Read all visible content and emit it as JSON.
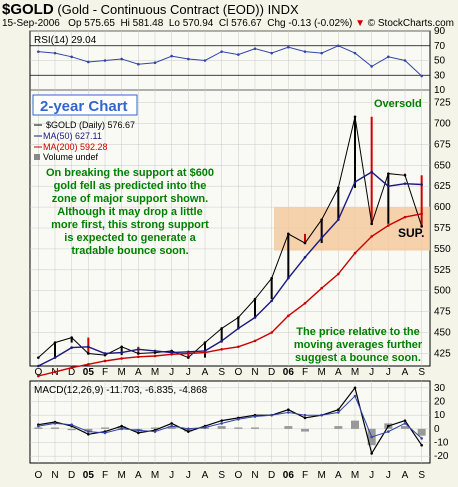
{
  "header": {
    "symbol": "$GOLD",
    "name": "(Gold - Continuous Contract (EOD))",
    "exchange": "INDX",
    "date": "15-Sep-2006",
    "open": "Op 575.65",
    "high": "Hi 581.48",
    "low": "Lo 570.94",
    "close": "Cl 576.67",
    "change": "Chg -0.13 (-0.02%)",
    "change_arrow": "▼",
    "credit": "© StockCharts.com"
  },
  "rsi_panel": {
    "label": "RSI(14) 29.04",
    "overbought": 70,
    "oversold": 30,
    "ticks": [
      90,
      70,
      50,
      30,
      10
    ]
  },
  "price_panel": {
    "title_box": "2-year Chart",
    "oversold_note": "Oversold",
    "legend": {
      "gold": "$GOLD (Daily) 576.67",
      "ma50": "MA(50) 627.11",
      "ma200": "MA(200) 592.28",
      "volume": "Volume undef"
    },
    "annotation_main": [
      "On breaking the support at $600",
      "gold fell as predicted into the",
      "zone of major support shown.",
      "Although it may drop a little",
      "more first, this strong support",
      "is expected to generate a",
      "tradable bounce soon."
    ],
    "annotation_bottom": [
      "The price relative to the",
      "moving averages further",
      "suggest a bounce soon."
    ],
    "support_label": "SUP.",
    "support_zone": [
      548,
      600
    ],
    "ticks": [
      725,
      700,
      675,
      650,
      625,
      600,
      575,
      550,
      525,
      500,
      475,
      450,
      425
    ]
  },
  "macd_panel": {
    "label": "MACD(12,26,9) -11.703, -6.835, -4.868",
    "ticks": [
      30,
      20,
      10,
      0,
      -10,
      -20
    ]
  },
  "x_axis": {
    "months": [
      "O",
      "N",
      "D",
      "05",
      "F",
      "M",
      "A",
      "M",
      "J",
      "J",
      "A",
      "S",
      "O",
      "N",
      "D",
      "06",
      "F",
      "M",
      "A",
      "M",
      "J",
      "J",
      "A",
      "S"
    ]
  },
  "colors": {
    "price": "#000000",
    "up_bar": "#000000",
    "down_bar": "#cc0000",
    "ma50": "#1a1a80",
    "ma200": "#cc0000",
    "rsi": "#3344aa",
    "macd": "#000000",
    "signal": "#3344aa",
    "histogram": "#999999",
    "annotation_text": "#008000",
    "title_text": "#3366cc",
    "support_zone": "#f5c89a",
    "grid": "#c8c8c8"
  },
  "chart_data": [
    {
      "type": "line",
      "title": "RSI(14) 29.04",
      "x": [
        "O",
        "N",
        "D",
        "05",
        "F",
        "M",
        "A",
        "M",
        "J",
        "J",
        "A",
        "S",
        "O",
        "N",
        "D",
        "06",
        "F",
        "M",
        "A",
        "M",
        "J",
        "J",
        "A",
        "S"
      ],
      "series": [
        {
          "name": "RSI(14)",
          "values": [
            62,
            60,
            55,
            48,
            50,
            52,
            45,
            47,
            56,
            52,
            50,
            62,
            58,
            66,
            60,
            68,
            62,
            60,
            70,
            60,
            42,
            55,
            50,
            29
          ]
        }
      ],
      "ylim": [
        10,
        90
      ]
    },
    {
      "type": "line",
      "title": "$GOLD (Daily) 576.67",
      "x": [
        "O",
        "N",
        "D",
        "05",
        "F",
        "M",
        "A",
        "M",
        "J",
        "J",
        "A",
        "S",
        "O",
        "N",
        "D",
        "06",
        "F",
        "M",
        "A",
        "M",
        "J",
        "J",
        "A",
        "S"
      ],
      "series": [
        {
          "name": "$GOLD (Daily) 576.67",
          "values": [
            420,
            438,
            444,
            425,
            423,
            433,
            425,
            426,
            428,
            420,
            438,
            455,
            468,
            490,
            515,
            568,
            557,
            585,
            623,
            708,
            580,
            640,
            638,
            577
          ]
        },
        {
          "name": "MA(50) 627.11",
          "values": [
            410,
            420,
            432,
            433,
            425,
            426,
            430,
            428,
            426,
            427,
            428,
            440,
            455,
            468,
            488,
            515,
            540,
            563,
            585,
            630,
            642,
            625,
            628,
            627
          ]
        },
        {
          "name": "MA(200) 592.28",
          "values": [
            398,
            403,
            408,
            412,
            416,
            419,
            421,
            422,
            424,
            425,
            426,
            430,
            433,
            440,
            450,
            470,
            485,
            503,
            520,
            545,
            565,
            578,
            588,
            592
          ]
        }
      ],
      "ylim": [
        410,
        740
      ]
    },
    {
      "type": "line",
      "title": "MACD(12,26,9) -11.703, -6.835, -4.868",
      "x": [
        "O",
        "N",
        "D",
        "05",
        "F",
        "M",
        "A",
        "M",
        "J",
        "J",
        "A",
        "S",
        "O",
        "N",
        "D",
        "06",
        "F",
        "M",
        "A",
        "M",
        "J",
        "J",
        "A",
        "S"
      ],
      "series": [
        {
          "name": "MACD(12,26,9)",
          "values": [
            3,
            5,
            2,
            -4,
            -2,
            2,
            -3,
            -1,
            4,
            -2,
            2,
            6,
            8,
            10,
            10,
            14,
            8,
            10,
            14,
            30,
            -18,
            2,
            6,
            -12
          ]
        },
        {
          "name": "Signal",
          "values": [
            2,
            4,
            3,
            -2,
            -3,
            0,
            -1,
            -2,
            2,
            0,
            1,
            4,
            7,
            9,
            10,
            12,
            10,
            10,
            12,
            24,
            -6,
            -2,
            4,
            -7
          ]
        }
      ],
      "ylim": [
        -25,
        35
      ]
    }
  ]
}
